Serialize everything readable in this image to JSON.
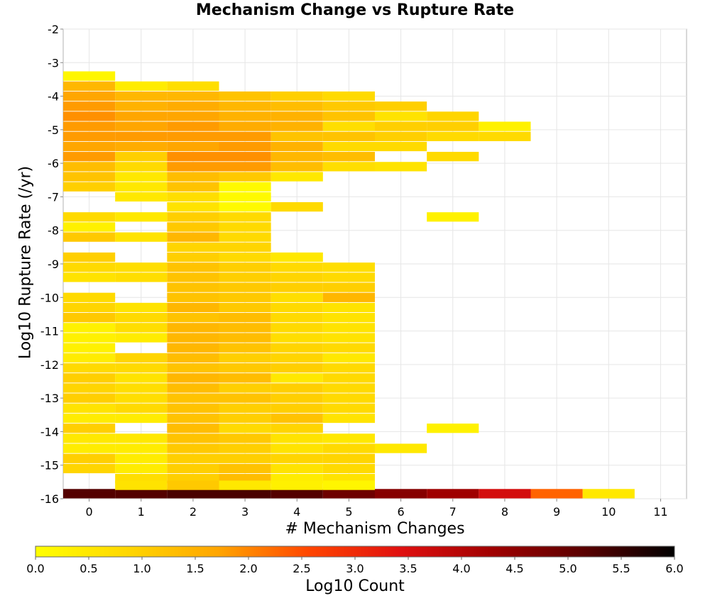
{
  "chart_data": {
    "type": "heatmap",
    "title": "Mechanism Change vs Rupture Rate",
    "xlabel": "# Mechanism Changes",
    "ylabel": "Log10 Rupture Rate (/yr)",
    "x_ticks": [
      "0",
      "1",
      "2",
      "3",
      "4",
      "5",
      "6",
      "7",
      "8",
      "9",
      "10",
      "11"
    ],
    "y_ticks": [
      "-2",
      "-3",
      "-4",
      "-5",
      "-6",
      "-7",
      "-8",
      "-9",
      "-10",
      "-11",
      "-12",
      "-13",
      "-14",
      "-15",
      "-16"
    ],
    "xlim": [
      -0.5,
      11.5
    ],
    "ylim": [
      -16,
      -2
    ],
    "bin_height": 0.28,
    "grid": true,
    "colorbar": {
      "label": "Log10 Count",
      "range": [
        0,
        6
      ],
      "ticks": [
        "0.0",
        "0.5",
        "1.0",
        "1.5",
        "2.0",
        "2.5",
        "3.0",
        "3.5",
        "4.0",
        "4.5",
        "5.0",
        "5.5",
        "6.0"
      ],
      "stops": [
        "#ffff00",
        "#ffd700",
        "#ffa500",
        "#ff4500",
        "#e01010",
        "#a00000",
        "#5a0000",
        "#000000"
      ]
    },
    "cells": [
      {
        "x": 0,
        "y": -15.85,
        "v": 5.2
      },
      {
        "x": 1,
        "y": -15.85,
        "v": 5.2
      },
      {
        "x": 2,
        "y": -15.85,
        "v": 5.3
      },
      {
        "x": 3,
        "y": -15.85,
        "v": 5.3
      },
      {
        "x": 4,
        "y": -15.85,
        "v": 5.2
      },
      {
        "x": 5,
        "y": -15.85,
        "v": 4.9
      },
      {
        "x": 6,
        "y": -15.85,
        "v": 4.6
      },
      {
        "x": 7,
        "y": -15.85,
        "v": 4.3
      },
      {
        "x": 8,
        "y": -15.85,
        "v": 3.6
      },
      {
        "x": 9,
        "y": -15.85,
        "v": 2.3
      },
      {
        "x": 10,
        "y": -15.85,
        "v": 0.5
      },
      {
        "x": 0,
        "y": -3.4,
        "v": 0.2
      },
      {
        "x": 0,
        "y": -3.7,
        "v": 1.4
      },
      {
        "x": 1,
        "y": -3.7,
        "v": 0.4
      },
      {
        "x": 2,
        "y": -3.7,
        "v": 0.7
      },
      {
        "x": 0,
        "y": -4.0,
        "v": 1.7
      },
      {
        "x": 1,
        "y": -4.0,
        "v": 1.4
      },
      {
        "x": 2,
        "y": -4.0,
        "v": 1.4
      },
      {
        "x": 3,
        "y": -4.0,
        "v": 1.2
      },
      {
        "x": 4,
        "y": -4.0,
        "v": 1.0
      },
      {
        "x": 5,
        "y": -4.0,
        "v": 0.8
      },
      {
        "x": 0,
        "y": -4.3,
        "v": 1.8
      },
      {
        "x": 1,
        "y": -4.3,
        "v": 1.5
      },
      {
        "x": 2,
        "y": -4.3,
        "v": 1.6
      },
      {
        "x": 3,
        "y": -4.3,
        "v": 1.4
      },
      {
        "x": 4,
        "y": -4.3,
        "v": 1.3
      },
      {
        "x": 5,
        "y": -4.3,
        "v": 1.1
      },
      {
        "x": 6,
        "y": -4.3,
        "v": 1.0
      },
      {
        "x": 0,
        "y": -4.6,
        "v": 1.9
      },
      {
        "x": 1,
        "y": -4.6,
        "v": 1.7
      },
      {
        "x": 2,
        "y": -4.6,
        "v": 1.7
      },
      {
        "x": 3,
        "y": -4.6,
        "v": 1.5
      },
      {
        "x": 4,
        "y": -4.6,
        "v": 1.5
      },
      {
        "x": 5,
        "y": -4.6,
        "v": 1.2
      },
      {
        "x": 6,
        "y": -4.6,
        "v": 0.6
      },
      {
        "x": 7,
        "y": -4.6,
        "v": 0.9
      },
      {
        "x": 0,
        "y": -4.9,
        "v": 1.8
      },
      {
        "x": 1,
        "y": -4.9,
        "v": 1.7
      },
      {
        "x": 2,
        "y": -4.9,
        "v": 1.8
      },
      {
        "x": 3,
        "y": -4.9,
        "v": 1.6
      },
      {
        "x": 4,
        "y": -4.9,
        "v": 1.5
      },
      {
        "x": 5,
        "y": -4.9,
        "v": 0.7
      },
      {
        "x": 6,
        "y": -4.9,
        "v": 1.0
      },
      {
        "x": 7,
        "y": -4.9,
        "v": 1.0
      },
      {
        "x": 8,
        "y": -4.9,
        "v": 0.3
      },
      {
        "x": 0,
        "y": -5.2,
        "v": 1.8
      },
      {
        "x": 1,
        "y": -5.2,
        "v": 1.8
      },
      {
        "x": 2,
        "y": -5.2,
        "v": 1.8
      },
      {
        "x": 3,
        "y": -5.2,
        "v": 1.8
      },
      {
        "x": 4,
        "y": -5.2,
        "v": 1.2
      },
      {
        "x": 5,
        "y": -5.2,
        "v": 1.2
      },
      {
        "x": 6,
        "y": -5.2,
        "v": 1.0
      },
      {
        "x": 7,
        "y": -5.2,
        "v": 0.8
      },
      {
        "x": 8,
        "y": -5.2,
        "v": 0.8
      },
      {
        "x": 0,
        "y": -5.5,
        "v": 1.7
      },
      {
        "x": 1,
        "y": -5.5,
        "v": 1.6
      },
      {
        "x": 2,
        "y": -5.5,
        "v": 1.7
      },
      {
        "x": 3,
        "y": -5.5,
        "v": 1.8
      },
      {
        "x": 4,
        "y": -5.5,
        "v": 1.5
      },
      {
        "x": 5,
        "y": -5.5,
        "v": 0.8
      },
      {
        "x": 6,
        "y": -5.5,
        "v": 0.8
      },
      {
        "x": 0,
        "y": -5.8,
        "v": 1.8
      },
      {
        "x": 1,
        "y": -5.8,
        "v": 1.0
      },
      {
        "x": 2,
        "y": -5.8,
        "v": 1.9
      },
      {
        "x": 3,
        "y": -5.8,
        "v": 1.9
      },
      {
        "x": 4,
        "y": -5.8,
        "v": 1.4
      },
      {
        "x": 5,
        "y": -5.8,
        "v": 1.3
      },
      {
        "x": 7,
        "y": -5.8,
        "v": 0.8
      },
      {
        "x": 0,
        "y": -6.1,
        "v": 1.3
      },
      {
        "x": 1,
        "y": -6.1,
        "v": 0.8
      },
      {
        "x": 2,
        "y": -6.1,
        "v": 1.8
      },
      {
        "x": 3,
        "y": -6.1,
        "v": 1.8
      },
      {
        "x": 4,
        "y": -6.1,
        "v": 1.3
      },
      {
        "x": 5,
        "y": -6.1,
        "v": 0.7
      },
      {
        "x": 6,
        "y": -6.1,
        "v": 0.6
      },
      {
        "x": 0,
        "y": -6.4,
        "v": 1.2
      },
      {
        "x": 1,
        "y": -6.4,
        "v": 0.5
      },
      {
        "x": 2,
        "y": -6.4,
        "v": 1.3
      },
      {
        "x": 3,
        "y": -6.4,
        "v": 1.1
      },
      {
        "x": 4,
        "y": -6.4,
        "v": 0.5
      },
      {
        "x": 0,
        "y": -6.7,
        "v": 1.0
      },
      {
        "x": 1,
        "y": -6.7,
        "v": 0.5
      },
      {
        "x": 2,
        "y": -6.7,
        "v": 1.2
      },
      {
        "x": 3,
        "y": -6.7,
        "v": 0.1
      },
      {
        "x": 1,
        "y": -7.0,
        "v": 0.5
      },
      {
        "x": 2,
        "y": -7.0,
        "v": 0.7
      },
      {
        "x": 3,
        "y": -7.0,
        "v": 0.1
      },
      {
        "x": 2,
        "y": -7.3,
        "v": 0.6
      },
      {
        "x": 3,
        "y": -7.3,
        "v": 0.1
      },
      {
        "x": 4,
        "y": -7.3,
        "v": 0.8
      },
      {
        "x": 0,
        "y": -7.6,
        "v": 0.8
      },
      {
        "x": 1,
        "y": -7.6,
        "v": 0.5
      },
      {
        "x": 2,
        "y": -7.6,
        "v": 1.0
      },
      {
        "x": 3,
        "y": -7.6,
        "v": 0.8
      },
      {
        "x": 7,
        "y": -7.6,
        "v": 0.3
      },
      {
        "x": 0,
        "y": -7.9,
        "v": 0.3
      },
      {
        "x": 2,
        "y": -7.9,
        "v": 1.1
      },
      {
        "x": 3,
        "y": -7.9,
        "v": 0.8
      },
      {
        "x": 0,
        "y": -8.2,
        "v": 1.1
      },
      {
        "x": 1,
        "y": -8.2,
        "v": 0.6
      },
      {
        "x": 2,
        "y": -8.2,
        "v": 1.4
      },
      {
        "x": 3,
        "y": -8.2,
        "v": 0.8
      },
      {
        "x": 2,
        "y": -8.5,
        "v": 0.9
      },
      {
        "x": 3,
        "y": -8.5,
        "v": 0.9
      },
      {
        "x": 0,
        "y": -8.8,
        "v": 1.0
      },
      {
        "x": 2,
        "y": -8.8,
        "v": 1.0
      },
      {
        "x": 3,
        "y": -8.8,
        "v": 0.8
      },
      {
        "x": 4,
        "y": -8.8,
        "v": 0.5
      },
      {
        "x": 0,
        "y": -9.1,
        "v": 0.8
      },
      {
        "x": 1,
        "y": -9.1,
        "v": 0.7
      },
      {
        "x": 2,
        "y": -9.1,
        "v": 1.2
      },
      {
        "x": 3,
        "y": -9.1,
        "v": 1.0
      },
      {
        "x": 4,
        "y": -9.1,
        "v": 0.8
      },
      {
        "x": 5,
        "y": -9.1,
        "v": 0.7
      },
      {
        "x": 0,
        "y": -9.4,
        "v": 0.6
      },
      {
        "x": 1,
        "y": -9.4,
        "v": 0.7
      },
      {
        "x": 2,
        "y": -9.4,
        "v": 1.2
      },
      {
        "x": 3,
        "y": -9.4,
        "v": 1.0
      },
      {
        "x": 4,
        "y": -9.4,
        "v": 0.9
      },
      {
        "x": 5,
        "y": -9.4,
        "v": 0.8
      },
      {
        "x": 2,
        "y": -9.7,
        "v": 1.2
      },
      {
        "x": 3,
        "y": -9.7,
        "v": 1.1
      },
      {
        "x": 4,
        "y": -9.7,
        "v": 1.0
      },
      {
        "x": 5,
        "y": -9.7,
        "v": 1.0
      },
      {
        "x": 0,
        "y": -10.0,
        "v": 0.8
      },
      {
        "x": 2,
        "y": -10.0,
        "v": 1.2
      },
      {
        "x": 3,
        "y": -10.0,
        "v": 1.1
      },
      {
        "x": 4,
        "y": -10.0,
        "v": 0.7
      },
      {
        "x": 5,
        "y": -10.0,
        "v": 1.4
      },
      {
        "x": 0,
        "y": -10.3,
        "v": 0.9
      },
      {
        "x": 1,
        "y": -10.3,
        "v": 0.6
      },
      {
        "x": 2,
        "y": -10.3,
        "v": 1.4
      },
      {
        "x": 3,
        "y": -10.3,
        "v": 1.1
      },
      {
        "x": 4,
        "y": -10.3,
        "v": 0.8
      },
      {
        "x": 5,
        "y": -10.3,
        "v": 0.6
      },
      {
        "x": 0,
        "y": -10.6,
        "v": 1.1
      },
      {
        "x": 1,
        "y": -10.6,
        "v": 0.8
      },
      {
        "x": 2,
        "y": -10.6,
        "v": 1.2
      },
      {
        "x": 3,
        "y": -10.6,
        "v": 1.3
      },
      {
        "x": 4,
        "y": -10.6,
        "v": 0.8
      },
      {
        "x": 5,
        "y": -10.6,
        "v": 0.6
      },
      {
        "x": 0,
        "y": -10.9,
        "v": 0.3
      },
      {
        "x": 1,
        "y": -10.9,
        "v": 0.7
      },
      {
        "x": 2,
        "y": -10.9,
        "v": 1.4
      },
      {
        "x": 3,
        "y": -10.9,
        "v": 1.3
      },
      {
        "x": 4,
        "y": -10.9,
        "v": 0.8
      },
      {
        "x": 5,
        "y": -10.9,
        "v": 0.6
      },
      {
        "x": 0,
        "y": -11.2,
        "v": 0.3
      },
      {
        "x": 1,
        "y": -11.2,
        "v": 0.4
      },
      {
        "x": 2,
        "y": -11.2,
        "v": 1.4
      },
      {
        "x": 3,
        "y": -11.2,
        "v": 1.3
      },
      {
        "x": 4,
        "y": -11.2,
        "v": 0.7
      },
      {
        "x": 5,
        "y": -11.2,
        "v": 0.6
      },
      {
        "x": 0,
        "y": -11.5,
        "v": 0.3
      },
      {
        "x": 2,
        "y": -11.5,
        "v": 1.4
      },
      {
        "x": 3,
        "y": -11.5,
        "v": 1.2
      },
      {
        "x": 4,
        "y": -11.5,
        "v": 0.9
      },
      {
        "x": 5,
        "y": -11.5,
        "v": 0.8
      },
      {
        "x": 0,
        "y": -11.8,
        "v": 0.4
      },
      {
        "x": 1,
        "y": -11.8,
        "v": 0.9
      },
      {
        "x": 2,
        "y": -11.8,
        "v": 1.3
      },
      {
        "x": 3,
        "y": -11.8,
        "v": 1.0
      },
      {
        "x": 4,
        "y": -11.8,
        "v": 0.9
      },
      {
        "x": 5,
        "y": -11.8,
        "v": 0.5
      },
      {
        "x": 0,
        "y": -12.1,
        "v": 0.8
      },
      {
        "x": 1,
        "y": -12.1,
        "v": 0.8
      },
      {
        "x": 2,
        "y": -12.1,
        "v": 1.2
      },
      {
        "x": 3,
        "y": -12.1,
        "v": 1.1
      },
      {
        "x": 4,
        "y": -12.1,
        "v": 1.0
      },
      {
        "x": 5,
        "y": -12.1,
        "v": 0.8
      },
      {
        "x": 0,
        "y": -12.4,
        "v": 1.0
      },
      {
        "x": 1,
        "y": -12.4,
        "v": 0.6
      },
      {
        "x": 2,
        "y": -12.4,
        "v": 1.4
      },
      {
        "x": 3,
        "y": -12.4,
        "v": 1.3
      },
      {
        "x": 4,
        "y": -12.4,
        "v": 0.5
      },
      {
        "x": 5,
        "y": -12.4,
        "v": 0.8
      },
      {
        "x": 0,
        "y": -12.7,
        "v": 0.9
      },
      {
        "x": 1,
        "y": -12.7,
        "v": 0.7
      },
      {
        "x": 2,
        "y": -12.7,
        "v": 1.3
      },
      {
        "x": 3,
        "y": -12.7,
        "v": 1.0
      },
      {
        "x": 4,
        "y": -12.7,
        "v": 1.0
      },
      {
        "x": 5,
        "y": -12.7,
        "v": 0.8
      },
      {
        "x": 0,
        "y": -13.0,
        "v": 1.0
      },
      {
        "x": 1,
        "y": -13.0,
        "v": 0.7
      },
      {
        "x": 2,
        "y": -13.0,
        "v": 1.2
      },
      {
        "x": 3,
        "y": -13.0,
        "v": 1.2
      },
      {
        "x": 4,
        "y": -13.0,
        "v": 1.0
      },
      {
        "x": 5,
        "y": -13.0,
        "v": 0.8
      },
      {
        "x": 0,
        "y": -13.3,
        "v": 0.6
      },
      {
        "x": 1,
        "y": -13.3,
        "v": 0.8
      },
      {
        "x": 2,
        "y": -13.3,
        "v": 1.2
      },
      {
        "x": 3,
        "y": -13.3,
        "v": 1.0
      },
      {
        "x": 4,
        "y": -13.3,
        "v": 1.0
      },
      {
        "x": 5,
        "y": -13.3,
        "v": 0.8
      },
      {
        "x": 0,
        "y": -13.6,
        "v": 0.4
      },
      {
        "x": 1,
        "y": -13.6,
        "v": 0.4
      },
      {
        "x": 2,
        "y": -13.6,
        "v": 1.2
      },
      {
        "x": 3,
        "y": -13.6,
        "v": 1.0
      },
      {
        "x": 4,
        "y": -13.6,
        "v": 1.2
      },
      {
        "x": 5,
        "y": -13.6,
        "v": 0.6
      },
      {
        "x": 0,
        "y": -13.9,
        "v": 1.0
      },
      {
        "x": 2,
        "y": -13.9,
        "v": 1.3
      },
      {
        "x": 3,
        "y": -13.9,
        "v": 0.8
      },
      {
        "x": 4,
        "y": -13.9,
        "v": 0.9
      },
      {
        "x": 7,
        "y": -13.9,
        "v": 0.3
      },
      {
        "x": 0,
        "y": -14.2,
        "v": 0.5
      },
      {
        "x": 1,
        "y": -14.2,
        "v": 0.5
      },
      {
        "x": 2,
        "y": -14.2,
        "v": 1.2
      },
      {
        "x": 3,
        "y": -14.2,
        "v": 1.1
      },
      {
        "x": 4,
        "y": -14.2,
        "v": 0.6
      },
      {
        "x": 5,
        "y": -14.2,
        "v": 0.5
      },
      {
        "x": 0,
        "y": -14.5,
        "v": 0.4
      },
      {
        "x": 1,
        "y": -14.5,
        "v": 0.4
      },
      {
        "x": 2,
        "y": -14.5,
        "v": 1.1
      },
      {
        "x": 3,
        "y": -14.5,
        "v": 1.0
      },
      {
        "x": 4,
        "y": -14.5,
        "v": 0.6
      },
      {
        "x": 5,
        "y": -14.5,
        "v": 0.8
      },
      {
        "x": 6,
        "y": -14.5,
        "v": 0.5
      },
      {
        "x": 0,
        "y": -14.8,
        "v": 1.0
      },
      {
        "x": 1,
        "y": -14.8,
        "v": 0.4
      },
      {
        "x": 2,
        "y": -14.8,
        "v": 1.0
      },
      {
        "x": 3,
        "y": -14.8,
        "v": 1.0
      },
      {
        "x": 4,
        "y": -14.8,
        "v": 0.9
      },
      {
        "x": 5,
        "y": -14.8,
        "v": 0.9
      },
      {
        "x": 0,
        "y": -15.1,
        "v": 0.9
      },
      {
        "x": 1,
        "y": -15.1,
        "v": 0.4
      },
      {
        "x": 2,
        "y": -15.1,
        "v": 1.0
      },
      {
        "x": 3,
        "y": -15.1,
        "v": 1.2
      },
      {
        "x": 4,
        "y": -15.1,
        "v": 0.6
      },
      {
        "x": 5,
        "y": -15.1,
        "v": 0.8
      },
      {
        "x": 1,
        "y": -15.4,
        "v": 0.7
      },
      {
        "x": 2,
        "y": -15.4,
        "v": 1.0
      },
      {
        "x": 3,
        "y": -15.4,
        "v": 1.3
      },
      {
        "x": 4,
        "y": -15.4,
        "v": 0.4
      },
      {
        "x": 5,
        "y": -15.4,
        "v": 0.6
      },
      {
        "x": 1,
        "y": -15.6,
        "v": 0.6
      },
      {
        "x": 2,
        "y": -15.6,
        "v": 1.1
      },
      {
        "x": 3,
        "y": -15.6,
        "v": 0.5
      },
      {
        "x": 4,
        "y": -15.6,
        "v": 0.3
      },
      {
        "x": 5,
        "y": -15.6,
        "v": 0.2
      }
    ]
  }
}
